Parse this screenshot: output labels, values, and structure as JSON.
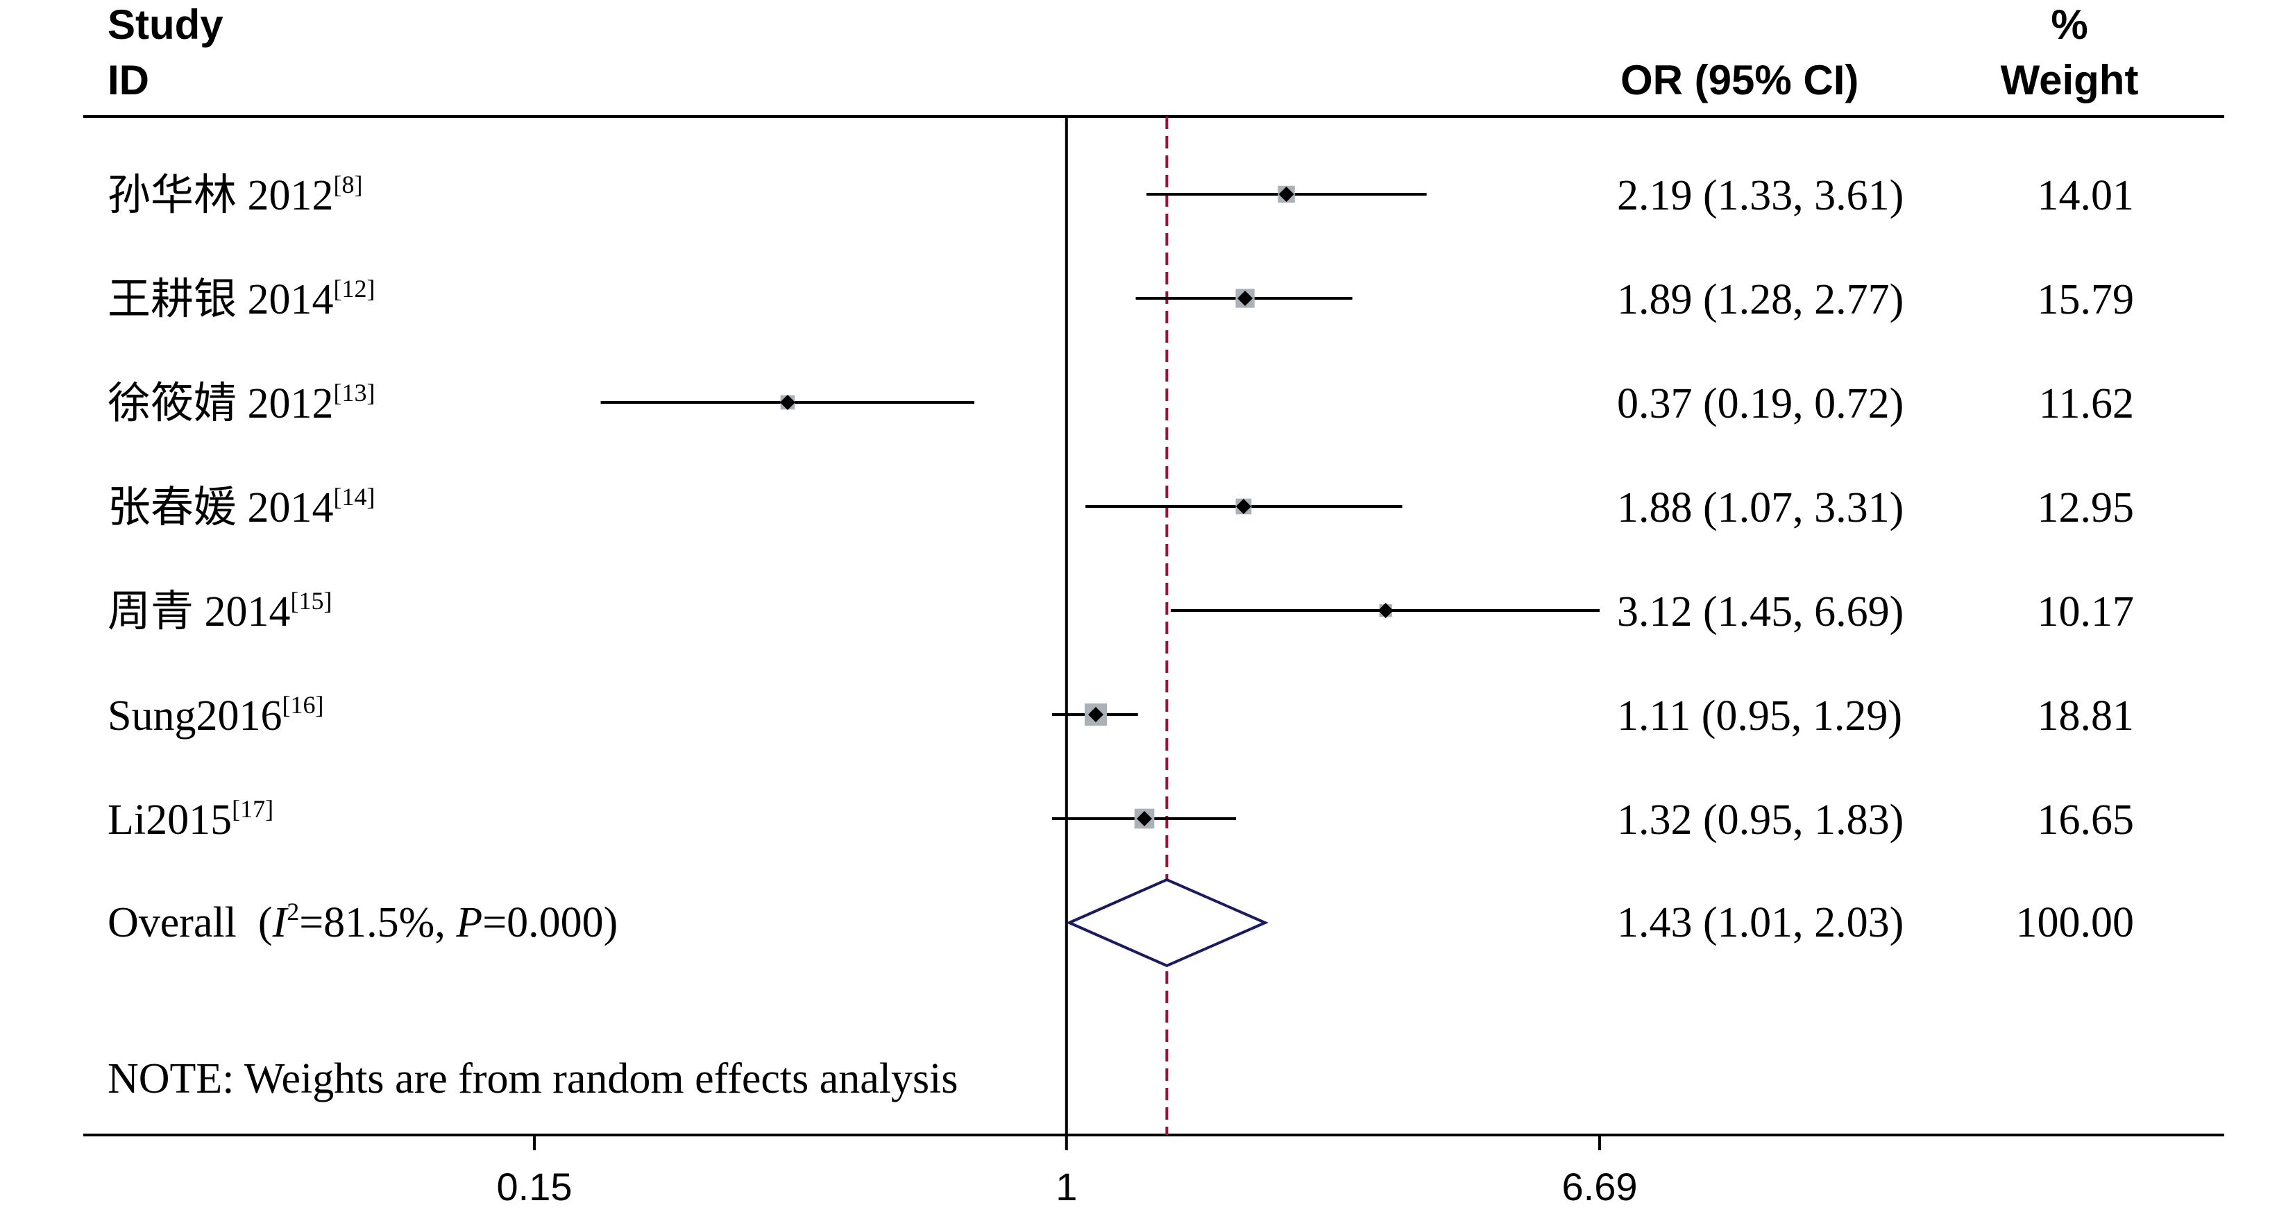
{
  "header": {
    "study_line1": "Study",
    "study_line2": "ID",
    "or_label": "OR (95% CI)",
    "weight_line1": "%",
    "weight_line2": "Weight"
  },
  "chart_data": {
    "type": "forest",
    "scale": "log",
    "xlim": [
      0.15,
      6.69
    ],
    "ticks": [
      {
        "value": 0.15,
        "label": "0.15"
      },
      {
        "value": 1,
        "label": "1"
      },
      {
        "value": 6.69,
        "label": "6.69"
      }
    ],
    "null_line": 1,
    "studies": [
      {
        "name": "孙华林 2012",
        "ref": "[8]",
        "or": 2.19,
        "lo": 1.33,
        "hi": 3.61,
        "or_text": "2.19 (1.33, 3.61)",
        "weight": 14.01,
        "weight_text": "14.01"
      },
      {
        "name": "王耕银 2014",
        "ref": "[12]",
        "or": 1.89,
        "lo": 1.28,
        "hi": 2.77,
        "or_text": "1.89 (1.28, 2.77)",
        "weight": 15.79,
        "weight_text": "15.79"
      },
      {
        "name": "徐筱婧 2012",
        "ref": "[13]",
        "or": 0.37,
        "lo": 0.19,
        "hi": 0.72,
        "or_text": "0.37 (0.19, 0.72)",
        "weight": 11.62,
        "weight_text": "11.62"
      },
      {
        "name": "张春媛 2014",
        "ref": "[14]",
        "or": 1.88,
        "lo": 1.07,
        "hi": 3.31,
        "or_text": "1.88 (1.07, 3.31)",
        "weight": 12.95,
        "weight_text": "12.95"
      },
      {
        "name": "周青 2014",
        "ref": "[15]",
        "or": 3.12,
        "lo": 1.45,
        "hi": 6.69,
        "or_text": "3.12 (1.45, 6.69)",
        "weight": 10.17,
        "weight_text": "10.17"
      },
      {
        "name": "Sung2016",
        "ref": "[16]",
        "or": 1.11,
        "lo": 0.95,
        "hi": 1.29,
        "or_text": "1.11 (0.95, 1.29)",
        "weight": 18.81,
        "weight_text": "18.81"
      },
      {
        "name": "Li2015",
        "ref": "[17]",
        "or": 1.32,
        "lo": 0.95,
        "hi": 1.83,
        "or_text": "1.32 (0.95, 1.83)",
        "weight": 16.65,
        "weight_text": "16.65"
      }
    ],
    "overall": {
      "label_prefix": "Overall (",
      "i_symbol": "I",
      "i_exp": "2",
      "i_value": "=81.5%, ",
      "p_symbol": "P",
      "p_value": "=0.000)",
      "or": 1.43,
      "lo": 1.01,
      "hi": 2.03,
      "or_text": "1.43 (1.01, 2.03)",
      "weight_text": "100.00"
    },
    "note": "NOTE: Weights are from random effects analysis",
    "colors": {
      "axis": "#000000",
      "box": "#aab2b8",
      "marker": "#000000",
      "overall_diamond": "#1a1a5e",
      "overall_line": "#8b1a3a"
    }
  }
}
